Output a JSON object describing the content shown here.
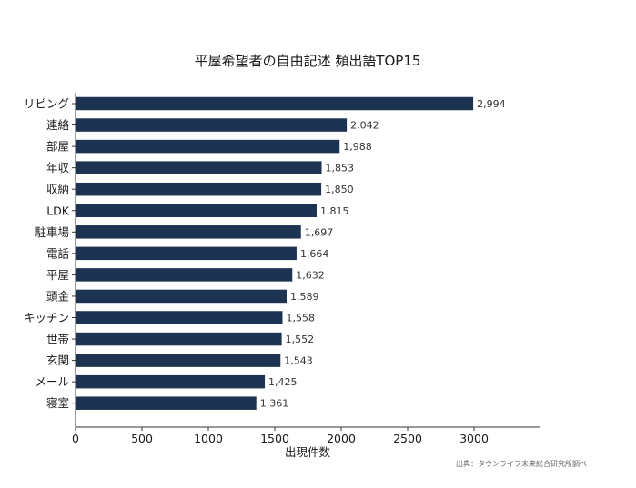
{
  "colors": {
    "bar": "#1c3352",
    "axis": "#333333"
  },
  "chart_data": {
    "type": "bar",
    "orientation": "horizontal",
    "title": "平屋希望者の自由記述 頻出語TOP15",
    "xlabel": "出現件数",
    "ylabel": "",
    "xlim": [
      0,
      3500
    ],
    "xticks": [
      0,
      500,
      1000,
      1500,
      2000,
      2500,
      3000
    ],
    "xtick_labels": [
      "0",
      "500",
      "1000",
      "1500",
      "2000",
      "2500",
      "3000"
    ],
    "categories": [
      "リビング",
      "連絡",
      "部屋",
      "年収",
      "収納",
      "LDK",
      "駐車場",
      "電話",
      "平屋",
      "頭金",
      "キッチン",
      "世帯",
      "玄関",
      "メール",
      "寝室"
    ],
    "values": [
      2994,
      2042,
      1988,
      1853,
      1850,
      1815,
      1697,
      1664,
      1632,
      1589,
      1558,
      1552,
      1543,
      1425,
      1361
    ],
    "value_labels": [
      "2,994",
      "2,042",
      "1,988",
      "1,853",
      "1,850",
      "1,815",
      "1,697",
      "1,664",
      "1,632",
      "1,589",
      "1,558",
      "1,552",
      "1,543",
      "1,425",
      "1,361"
    ],
    "source": "出典：タウンライフ未来総合研究所調べ"
  }
}
